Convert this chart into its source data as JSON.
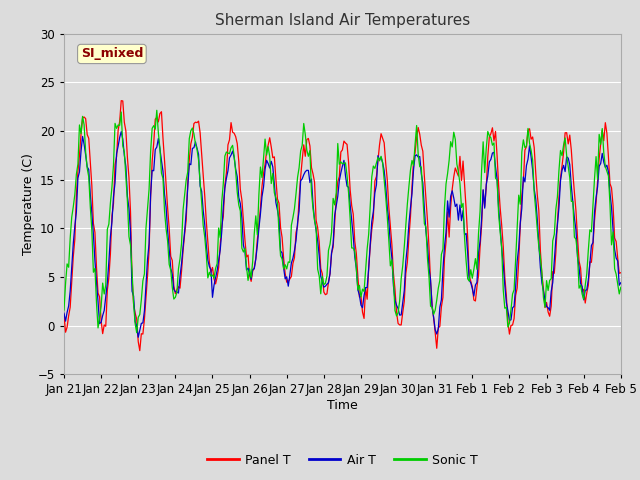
{
  "title": "Sherman Island Air Temperatures",
  "xlabel": "Time",
  "ylabel": "Temperature (C)",
  "ylim": [
    -5,
    30
  ],
  "background_color": "#dcdcdc",
  "fig_color": "#dcdcdc",
  "annotation_text": "SI_mixed",
  "annotation_color": "#8b0000",
  "annotation_bg": "#ffffcc",
  "line_colors": {
    "panel": "#ff0000",
    "air": "#0000cc",
    "sonic": "#00cc00"
  },
  "legend_labels": [
    "Panel T",
    "Air T",
    "Sonic T"
  ],
  "xtick_labels": [
    "Jan 21",
    "Jan 22",
    "Jan 23",
    "Jan 24",
    "Jan 25",
    "Jan 26",
    "Jan 27",
    "Jan 28",
    "Jan 29",
    "Jan 30",
    "Jan 31",
    "Feb 1",
    "Feb 2",
    "Feb 3",
    "Feb 4",
    "Feb 5"
  ],
  "xtick_positions": [
    0,
    24,
    48,
    72,
    96,
    120,
    144,
    168,
    192,
    216,
    240,
    264,
    288,
    312,
    336,
    360
  ]
}
